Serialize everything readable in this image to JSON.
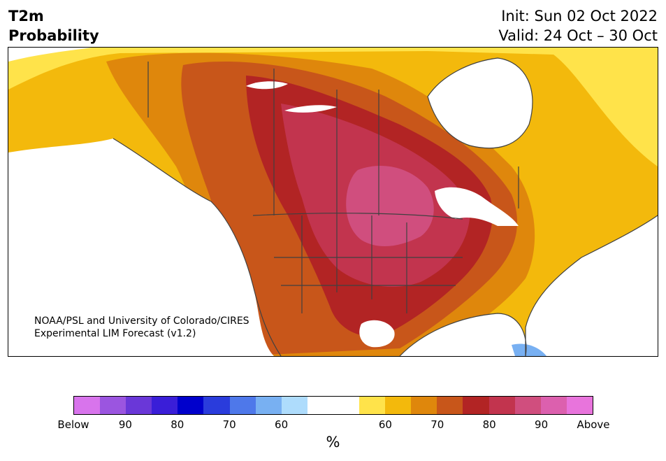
{
  "header": {
    "title_line1": "T2m",
    "title_line2": "Probability",
    "init_text": "Init: Sun 02 Oct 2022",
    "valid_text": "Valid: 24 Oct – 30 Oct"
  },
  "credit": {
    "line1": "NOAA/PSL and University of Colorado/CIRES",
    "line2": "Experimental LIM Forecast (v1.2)"
  },
  "colorbar": {
    "colors": [
      "#d874ec",
      "#9b55e0",
      "#6a37d8",
      "#3a1ed8",
      "#0000cc",
      "#2a3cdc",
      "#4e78ea",
      "#78b0f2",
      "#aedcfc",
      "#ffffff",
      "#ffffff",
      "#ffe34a",
      "#f3b90c",
      "#df870c",
      "#c8561a",
      "#b22424",
      "#c2344e",
      "#d04e7e",
      "#dc60ae",
      "#e874dc"
    ],
    "tick_labels": [
      "Below",
      "90",
      "80",
      "70",
      "60",
      "60",
      "70",
      "80",
      "90",
      "Above"
    ],
    "label": "%"
  },
  "map": {
    "legend_categories": [
      {
        "label": "60",
        "color": "#ffe34a"
      },
      {
        "label": "70",
        "color": "#df870c"
      },
      {
        "label": "80",
        "color": "#b22424"
      },
      {
        "label": "90",
        "color": "#d04e7e"
      }
    ]
  }
}
